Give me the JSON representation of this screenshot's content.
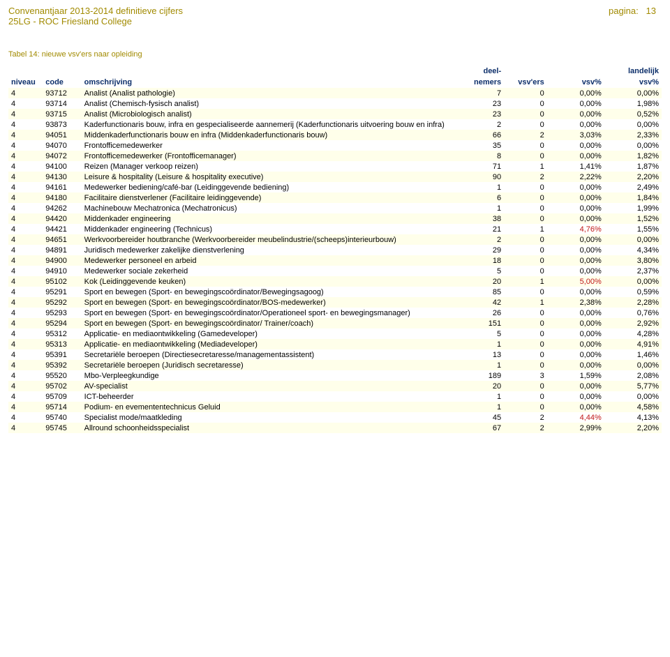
{
  "header": {
    "title": "Convenantjaar 2013-2014 definitieve cijfers",
    "subtitle": "25LG - ROC Friesland College",
    "page_label": "pagina:",
    "page_number": "13"
  },
  "table": {
    "caption": "Tabel 14: nieuwe vsv'ers naar opleiding",
    "columns": {
      "niveau": "niveau",
      "code": "code",
      "omschrijving": "omschrijving",
      "deel_top": "deel-",
      "deel": "nemers",
      "vsvers": "vsv'ers",
      "vsv": "vsv%",
      "land_top": "landelijk",
      "land": "vsv%"
    },
    "colors": {
      "header_text": "#0d2f6a",
      "title_text": "#a18a00",
      "row_alt_bg": "#ffffea",
      "highlight_text": "#c01818"
    },
    "rows": [
      {
        "niveau": "4",
        "code": "93712",
        "desc": "Analist (Analist pathologie)",
        "deel": "7",
        "vsvers": "0",
        "vsv": "0,00%",
        "land": "0,00%"
      },
      {
        "niveau": "4",
        "code": "93714",
        "desc": "Analist (Chemisch-fysisch analist)",
        "deel": "23",
        "vsvers": "0",
        "vsv": "0,00%",
        "land": "1,98%"
      },
      {
        "niveau": "4",
        "code": "93715",
        "desc": "Analist (Microbiologisch analist)",
        "deel": "23",
        "vsvers": "0",
        "vsv": "0,00%",
        "land": "0,52%"
      },
      {
        "niveau": "4",
        "code": "93873",
        "desc": "Kaderfunctionaris bouw, infra en gespecialiseerde aannemerij (Kaderfunctionaris uitvoering bouw en infra)",
        "deel": "2",
        "vsvers": "0",
        "vsv": "0,00%",
        "land": "0,00%"
      },
      {
        "niveau": "4",
        "code": "94051",
        "desc": "Middenkaderfunctionaris bouw en infra (Middenkaderfunctionaris bouw)",
        "deel": "66",
        "vsvers": "2",
        "vsv": "3,03%",
        "land": "2,33%"
      },
      {
        "niveau": "4",
        "code": "94070",
        "desc": "Frontofficemedewerker",
        "deel": "35",
        "vsvers": "0",
        "vsv": "0,00%",
        "land": "0,00%"
      },
      {
        "niveau": "4",
        "code": "94072",
        "desc": "Frontofficemedewerker (Frontofficemanager)",
        "deel": "8",
        "vsvers": "0",
        "vsv": "0,00%",
        "land": "1,82%"
      },
      {
        "niveau": "4",
        "code": "94100",
        "desc": "Reizen (Manager verkoop reizen)",
        "deel": "71",
        "vsvers": "1",
        "vsv": "1,41%",
        "land": "1,87%"
      },
      {
        "niveau": "4",
        "code": "94130",
        "desc": "Leisure & hospitality (Leisure & hospitality executive)",
        "deel": "90",
        "vsvers": "2",
        "vsv": "2,22%",
        "land": "2,20%"
      },
      {
        "niveau": "4",
        "code": "94161",
        "desc": "Medewerker bediening/café-bar (Leidinggevende bediening)",
        "deel": "1",
        "vsvers": "0",
        "vsv": "0,00%",
        "land": "2,49%"
      },
      {
        "niveau": "4",
        "code": "94180",
        "desc": "Facilitaire dienstverlener (Facilitaire leidinggevende)",
        "deel": "6",
        "vsvers": "0",
        "vsv": "0,00%",
        "land": "1,84%"
      },
      {
        "niveau": "4",
        "code": "94262",
        "desc": "Machinebouw Mechatronica (Mechatronicus)",
        "deel": "1",
        "vsvers": "0",
        "vsv": "0,00%",
        "land": "1,99%"
      },
      {
        "niveau": "4",
        "code": "94420",
        "desc": "Middenkader engineering",
        "deel": "38",
        "vsvers": "0",
        "vsv": "0,00%",
        "land": "1,52%"
      },
      {
        "niveau": "4",
        "code": "94421",
        "desc": "Middenkader engineering (Technicus)",
        "deel": "21",
        "vsvers": "1",
        "vsv": "4,76%",
        "vsv_red": true,
        "land": "1,55%"
      },
      {
        "niveau": "4",
        "code": "94651",
        "desc": "Werkvoorbereider houtbranche (Werkvoorbereider meubelindustrie/(scheeps)interieurbouw)",
        "deel": "2",
        "vsvers": "0",
        "vsv": "0,00%",
        "land": "0,00%"
      },
      {
        "niveau": "4",
        "code": "94891",
        "desc": "Juridisch medewerker zakelijke dienstverlening",
        "deel": "29",
        "vsvers": "0",
        "vsv": "0,00%",
        "land": "4,34%"
      },
      {
        "niveau": "4",
        "code": "94900",
        "desc": "Medewerker personeel en arbeid",
        "deel": "18",
        "vsvers": "0",
        "vsv": "0,00%",
        "land": "3,80%"
      },
      {
        "niveau": "4",
        "code": "94910",
        "desc": "Medewerker sociale zekerheid",
        "deel": "5",
        "vsvers": "0",
        "vsv": "0,00%",
        "land": "2,37%"
      },
      {
        "niveau": "4",
        "code": "95102",
        "desc": "Kok (Leidinggevende keuken)",
        "deel": "20",
        "vsvers": "1",
        "vsv": "5,00%",
        "vsv_red": true,
        "land": "0,00%"
      },
      {
        "niveau": "4",
        "code": "95291",
        "desc": "Sport en bewegen (Sport- en bewegingscoördinator/Bewegingsagoog)",
        "deel": "85",
        "vsvers": "0",
        "vsv": "0,00%",
        "land": "0,59%"
      },
      {
        "niveau": "4",
        "code": "95292",
        "desc": "Sport en bewegen (Sport- en bewegingscoördinator/BOS-medewerker)",
        "deel": "42",
        "vsvers": "1",
        "vsv": "2,38%",
        "land": "2,28%"
      },
      {
        "niveau": "4",
        "code": "95293",
        "desc": "Sport en bewegen (Sport- en bewegingscoördinator/Operationeel sport- en bewegingsmanager)",
        "deel": "26",
        "vsvers": "0",
        "vsv": "0,00%",
        "land": "0,76%"
      },
      {
        "niveau": "4",
        "code": "95294",
        "desc": "Sport en bewegen (Sport- en bewegingscoördinator/ Trainer/coach)",
        "deel": "151",
        "vsvers": "0",
        "vsv": "0,00%",
        "land": "2,92%"
      },
      {
        "niveau": "4",
        "code": "95312",
        "desc": "Applicatie- en mediaontwikkeling (Gamedeveloper)",
        "deel": "5",
        "vsvers": "0",
        "vsv": "0,00%",
        "land": "4,28%"
      },
      {
        "niveau": "4",
        "code": "95313",
        "desc": "Applicatie- en mediaontwikkeling (Mediadeveloper)",
        "deel": "1",
        "vsvers": "0",
        "vsv": "0,00%",
        "land": "4,91%"
      },
      {
        "niveau": "4",
        "code": "95391",
        "desc": "Secretariële beroepen (Directiesecretaresse/managementassistent)",
        "deel": "13",
        "vsvers": "0",
        "vsv": "0,00%",
        "land": "1,46%"
      },
      {
        "niveau": "4",
        "code": "95392",
        "desc": "Secretariële beroepen (Juridisch secretaresse)",
        "deel": "1",
        "vsvers": "0",
        "vsv": "0,00%",
        "land": "0,00%"
      },
      {
        "niveau": "4",
        "code": "95520",
        "desc": "Mbo-Verpleegkundige",
        "deel": "189",
        "vsvers": "3",
        "vsv": "1,59%",
        "land": "2,08%"
      },
      {
        "niveau": "4",
        "code": "95702",
        "desc": "AV-specialist",
        "deel": "20",
        "vsvers": "0",
        "vsv": "0,00%",
        "land": "5,77%"
      },
      {
        "niveau": "4",
        "code": "95709",
        "desc": "ICT-beheerder",
        "deel": "1",
        "vsvers": "0",
        "vsv": "0,00%",
        "land": "0,00%"
      },
      {
        "niveau": "4",
        "code": "95714",
        "desc": "Podium- en evemententechnicus Geluid",
        "deel": "1",
        "vsvers": "0",
        "vsv": "0,00%",
        "land": "4,58%"
      },
      {
        "niveau": "4",
        "code": "95740",
        "desc": "Specialist mode/maatkleding",
        "deel": "45",
        "vsvers": "2",
        "vsv": "4,44%",
        "vsv_red": true,
        "land": "4,13%"
      },
      {
        "niveau": "4",
        "code": "95745",
        "desc": "Allround schoonheidsspecialist",
        "deel": "67",
        "vsvers": "2",
        "vsv": "2,99%",
        "land": "2,20%"
      }
    ]
  }
}
